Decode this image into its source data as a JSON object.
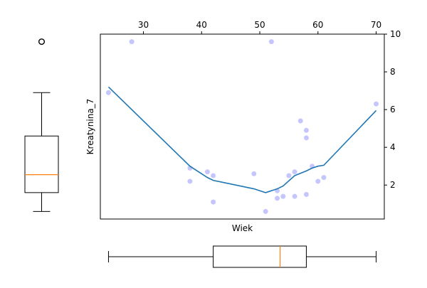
{
  "chart_data": {
    "type": "scatter",
    "xlabel": "Wiek",
    "ylabel": "Kreatynina_7",
    "xlim": [
      22.6,
      71.4
    ],
    "ylim": [
      0.2,
      10.0
    ],
    "x_ticks": [
      30,
      40,
      50,
      60,
      70
    ],
    "y_ticks": [
      2,
      4,
      6,
      8,
      10
    ],
    "x_axis_position": "top",
    "y_axis_position": "right",
    "grid": false,
    "colors": {
      "points": "#b3b3ff",
      "trend": "#1f77b4",
      "box": "#000000",
      "median": "#ff7f0e"
    },
    "points": [
      {
        "x": 24,
        "y": 6.9
      },
      {
        "x": 28,
        "y": 9.6
      },
      {
        "x": 38,
        "y": 2.9
      },
      {
        "x": 38,
        "y": 2.2
      },
      {
        "x": 41,
        "y": 2.7
      },
      {
        "x": 42,
        "y": 2.5
      },
      {
        "x": 42,
        "y": 1.1
      },
      {
        "x": 49,
        "y": 2.6
      },
      {
        "x": 51,
        "y": 0.6
      },
      {
        "x": 52,
        "y": 9.6
      },
      {
        "x": 53,
        "y": 1.7
      },
      {
        "x": 53,
        "y": 1.3
      },
      {
        "x": 54,
        "y": 1.4
      },
      {
        "x": 55,
        "y": 2.5
      },
      {
        "x": 56,
        "y": 2.7
      },
      {
        "x": 56,
        "y": 1.4
      },
      {
        "x": 57,
        "y": 5.4
      },
      {
        "x": 58,
        "y": 4.9
      },
      {
        "x": 58,
        "y": 4.5
      },
      {
        "x": 58,
        "y": 1.5
      },
      {
        "x": 59,
        "y": 3.0
      },
      {
        "x": 60,
        "y": 2.2
      },
      {
        "x": 61,
        "y": 2.4
      },
      {
        "x": 70,
        "y": 6.3
      }
    ],
    "trend_line": [
      {
        "x": 24,
        "y": 7.2
      },
      {
        "x": 38,
        "y": 3.0
      },
      {
        "x": 41,
        "y": 2.4
      },
      {
        "x": 42,
        "y": 2.25
      },
      {
        "x": 49,
        "y": 1.8
      },
      {
        "x": 51,
        "y": 1.6
      },
      {
        "x": 53,
        "y": 1.8
      },
      {
        "x": 54,
        "y": 1.95
      },
      {
        "x": 56,
        "y": 2.5
      },
      {
        "x": 58,
        "y": 2.75
      },
      {
        "x": 59,
        "y": 2.9
      },
      {
        "x": 60,
        "y": 3.0
      },
      {
        "x": 61,
        "y": 3.05
      },
      {
        "x": 70,
        "y": 5.95
      }
    ],
    "x_boxplot": {
      "whisker_low": 24,
      "q1": 42,
      "median": 53.5,
      "q3": 58,
      "whisker_high": 70,
      "outliers": []
    },
    "y_boxplot": {
      "whisker_low": 0.6,
      "q1": 1.6,
      "median": 2.55,
      "q3": 4.6,
      "whisker_high": 6.9,
      "outliers": [
        9.6
      ]
    }
  }
}
